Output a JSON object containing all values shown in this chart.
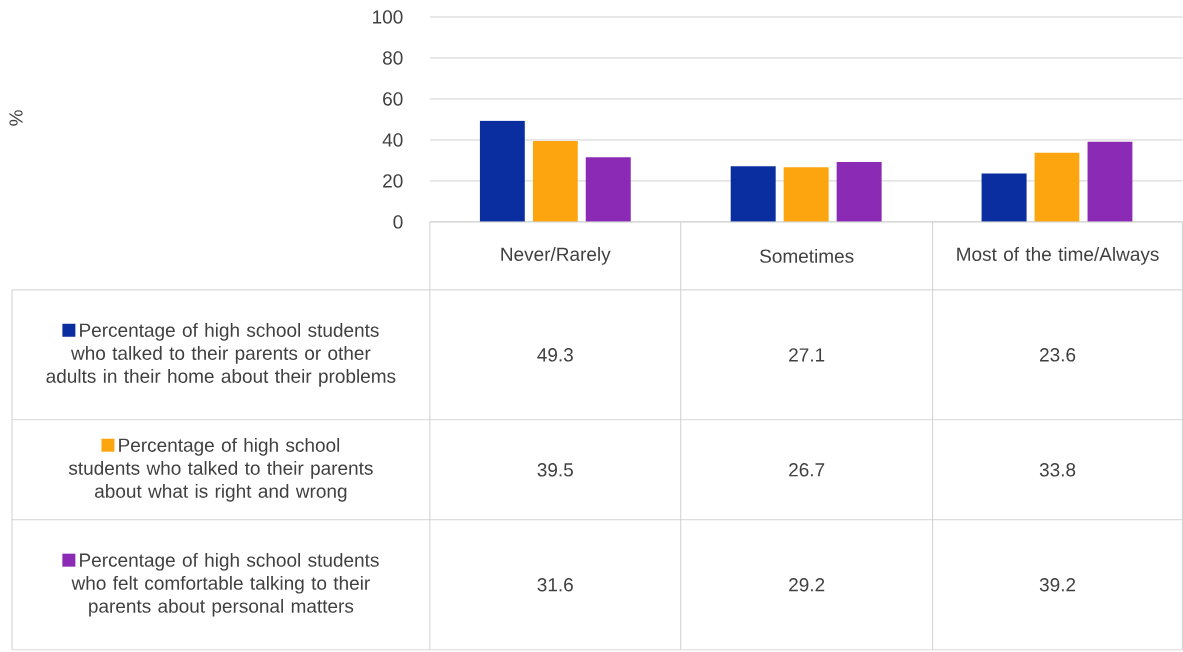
{
  "chart_data": {
    "type": "bar",
    "annotations": [
      "%"
    ],
    "categories": [
      "Never/Rarely",
      "Sometimes",
      "Most of the time/Always"
    ],
    "series": [
      {
        "name": "Percentage of high school students who talked to their parents or other adults in their home about their problems",
        "color": "#0a2ea0",
        "values": [
          49.3,
          27.1,
          23.6
        ]
      },
      {
        "name": "Percentage of high school students who talked to their parents about what is right and wrong",
        "color": "#fca50f",
        "values": [
          39.5,
          26.7,
          33.8
        ]
      },
      {
        "name": "Percentage of high school students who felt comfortable talking to their parents about personal matters",
        "color": "#8a2ab5",
        "values": [
          31.6,
          29.2,
          39.2
        ]
      }
    ],
    "ylim": [
      0,
      100
    ],
    "yticks": [
      0,
      20,
      40,
      60,
      80,
      100
    ],
    "grid": "y",
    "legend": "bottom",
    "data_labels": true
  }
}
